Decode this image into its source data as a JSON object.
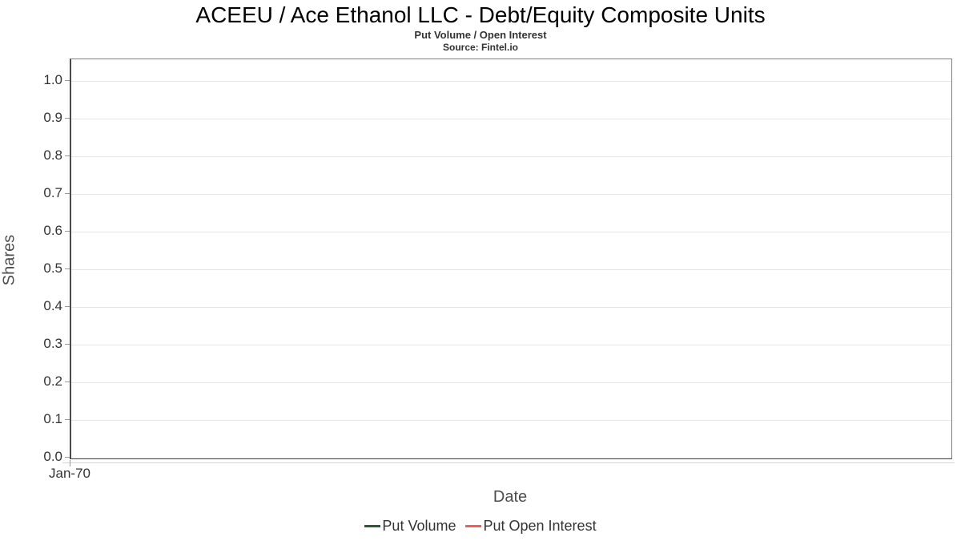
{
  "chart_data": {
    "type": "line",
    "title": "ACEEU / Ace Ethanol LLC - Debt/Equity Composite Units",
    "subtitle": "Put Volume / Open Interest",
    "source": "Source: Fintel.io",
    "xlabel": "Date",
    "ylabel": "Shares",
    "x_ticks": [
      "Jan-70"
    ],
    "y_ticks": [
      "1.0",
      "0.9",
      "0.8",
      "0.7",
      "0.6",
      "0.5",
      "0.4",
      "0.3",
      "0.2",
      "0.1",
      "0.0"
    ],
    "ylim": [
      0.0,
      1.05
    ],
    "grid": "horizontal",
    "legend_position": "bottom",
    "series": [
      {
        "name": "Put Volume",
        "color": "#2a5934",
        "x": [],
        "values": []
      },
      {
        "name": "Put Open Interest",
        "color": "#f45b5b",
        "x": [],
        "values": []
      }
    ],
    "colors": {
      "grid": "#e6e6e6",
      "plot_border": "#808080",
      "axis_text": "#333333",
      "axis_title_text": "#4d4d4d"
    }
  }
}
